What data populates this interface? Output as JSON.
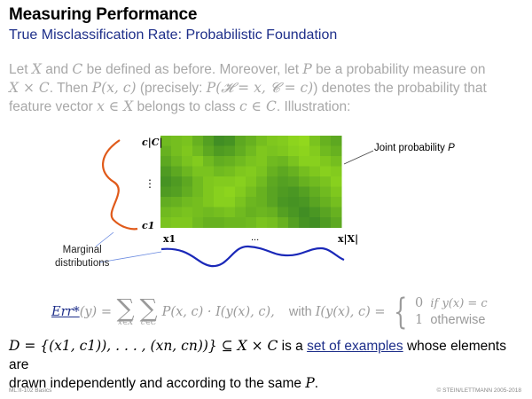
{
  "header": {
    "title": "Measuring Performance",
    "subtitle": "True Misclassification Rate: Probabilistic Foundation"
  },
  "intro": {
    "t1": "Let ",
    "X": "X",
    "t2": " and ",
    "C": "C",
    "t3": " be defined as before. Moreover, let ",
    "P": "P",
    "t4": " be a probability measure on",
    "XxC": "X × C",
    "t5": ". Then ",
    "Pxc": "P(x, c)",
    "t6": " (precisely: ",
    "precise": "P(𝓗 = x, 𝓒 = c)",
    "t7": ") denotes the probability that",
    "t8": "feature vector ",
    "xinX": "x ∈ X",
    "t9": " belongs to class ",
    "cinC": "c ∈ C",
    "t10": ". Illustration:"
  },
  "illustration": {
    "y_top": "c|C|",
    "y_dots": "⋮",
    "y_bottom": "c1",
    "x_left": "x1",
    "x_dots": "...",
    "x_right": "x|X|",
    "joint_label": "Joint probability ",
    "joint_P": "P",
    "marginal_line1": "Marginal",
    "marginal_line2": "distributions",
    "grid_values": [
      [
        0.45,
        0.4,
        0.35,
        0.55,
        0.75,
        0.95,
        0.9,
        0.65,
        0.55,
        0.4,
        0.3,
        0.25,
        0.15,
        0.1,
        0.35,
        0.55,
        0.65
      ],
      [
        0.55,
        0.4,
        0.3,
        0.45,
        0.65,
        0.8,
        0.75,
        0.6,
        0.45,
        0.3,
        0.35,
        0.3,
        0.2,
        0.15,
        0.25,
        0.45,
        0.55
      ],
      [
        0.65,
        0.5,
        0.35,
        0.25,
        0.45,
        0.6,
        0.55,
        0.45,
        0.35,
        0.3,
        0.45,
        0.5,
        0.35,
        0.2,
        0.2,
        0.3,
        0.4
      ],
      [
        0.8,
        0.65,
        0.5,
        0.35,
        0.35,
        0.45,
        0.4,
        0.3,
        0.25,
        0.35,
        0.55,
        0.65,
        0.55,
        0.4,
        0.3,
        0.2,
        0.25
      ],
      [
        0.9,
        0.8,
        0.65,
        0.45,
        0.3,
        0.25,
        0.25,
        0.2,
        0.3,
        0.45,
        0.65,
        0.75,
        0.7,
        0.55,
        0.45,
        0.35,
        0.2
      ],
      [
        0.8,
        0.75,
        0.6,
        0.45,
        0.3,
        0.2,
        0.15,
        0.25,
        0.4,
        0.55,
        0.7,
        0.8,
        0.85,
        0.75,
        0.6,
        0.45,
        0.3
      ],
      [
        0.6,
        0.55,
        0.45,
        0.4,
        0.3,
        0.2,
        0.2,
        0.35,
        0.5,
        0.55,
        0.7,
        0.85,
        0.9,
        0.85,
        0.7,
        0.55,
        0.4
      ],
      [
        0.45,
        0.4,
        0.35,
        0.4,
        0.45,
        0.4,
        0.35,
        0.45,
        0.55,
        0.5,
        0.55,
        0.75,
        0.85,
        0.95,
        0.85,
        0.7,
        0.55
      ],
      [
        0.35,
        0.3,
        0.3,
        0.45,
        0.55,
        0.55,
        0.5,
        0.5,
        0.45,
        0.35,
        0.4,
        0.55,
        0.75,
        0.9,
        0.95,
        0.8,
        0.65
      ]
    ],
    "colors": {
      "low": "#9be11c",
      "high": "#3c8a24",
      "marginal_y": "#e05a1a",
      "marginal_x": "#1a28b8",
      "link": "#1e2f8a"
    }
  },
  "formula": {
    "err": "Err*",
    "arg": "(y)",
    "eq": " = ",
    "sub1": "x∈X",
    "sub2": "c∈C",
    "summand": "P(x, c) · I(y(x), c),",
    "with": "with ",
    "I_def": "I(y(x), c) =",
    "case1_val": "0",
    "case1_cond": "if y(x) = c",
    "case2_val": "1",
    "case2_cond": "otherwise"
  },
  "bottom": {
    "D_def": "D = {(x1, c1)), . . . , (xn, cn))} ⊆ X × C",
    "t1": " is a ",
    "link": "set of examples",
    "t2": " whose elements are",
    "t3": "drawn independently and according to the same ",
    "P": "P",
    "t4": "."
  },
  "footer": {
    "left": "ML:II-102    Basics",
    "right": "© STEIN/LETTMANN 2005-2018"
  }
}
